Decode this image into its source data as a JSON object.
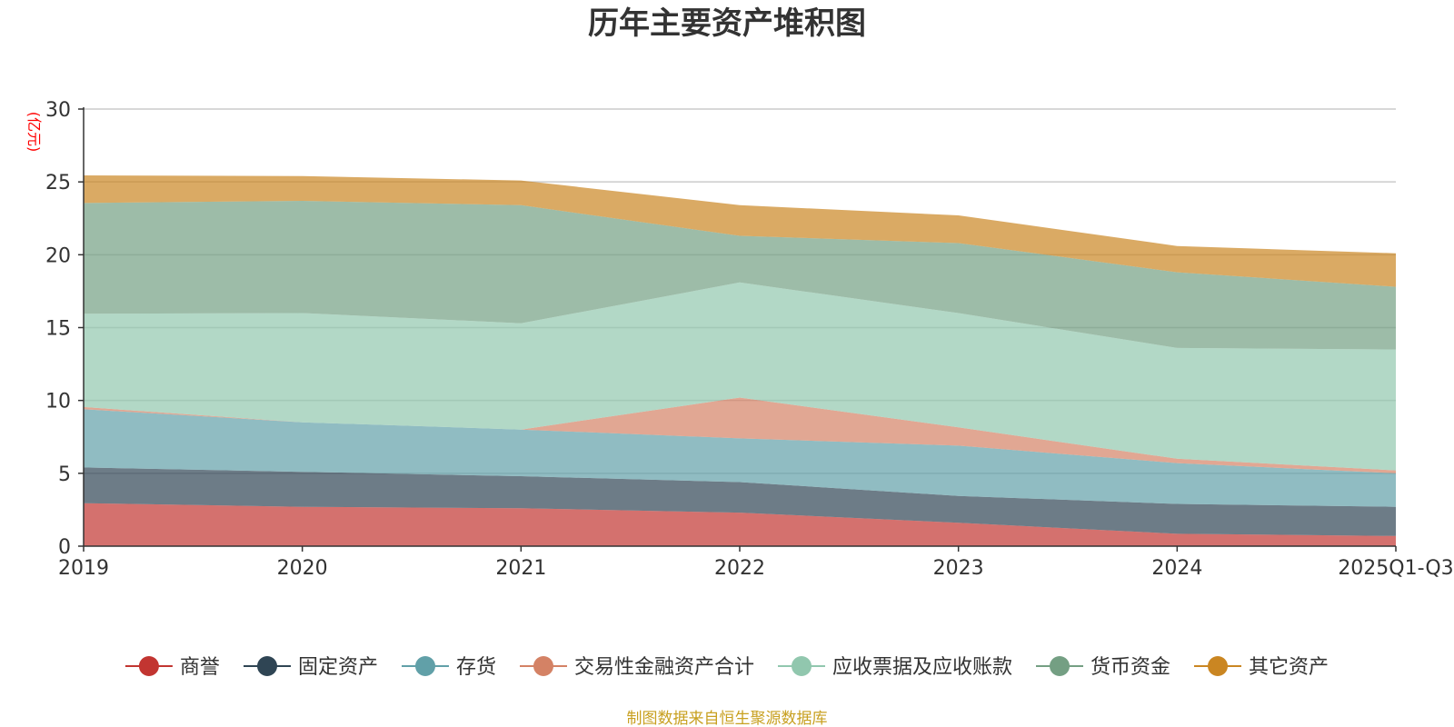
{
  "chart_data": {
    "type": "area",
    "stacked": true,
    "title": "历年主要资产堆积图",
    "unit_label": "(亿元)",
    "source_note": "制图数据来自恒生聚源数据库",
    "categories": [
      "2019",
      "2020",
      "2021",
      "2022",
      "2023",
      "2024",
      "2025Q1-Q3"
    ],
    "ylim": [
      0,
      30
    ],
    "yticks": [
      0,
      5,
      10,
      15,
      20,
      25,
      30
    ],
    "grid": true,
    "legend_position": "bottom",
    "series": [
      {
        "name": "商誉",
        "color": "#c23531",
        "values": [
          2.95,
          2.7,
          2.6,
          2.3,
          1.6,
          0.85,
          0.7
        ]
      },
      {
        "name": "固定资产",
        "color": "#2f4554",
        "values": [
          2.45,
          2.4,
          2.2,
          2.1,
          1.85,
          2.05,
          2.0
        ]
      },
      {
        "name": "存货",
        "color": "#61a0a8",
        "values": [
          4.0,
          3.4,
          3.2,
          3.0,
          3.45,
          2.8,
          2.3
        ]
      },
      {
        "name": "交易性金融资产合计",
        "color": "#d48265",
        "values": [
          0.15,
          0.0,
          0.0,
          2.8,
          1.25,
          0.3,
          0.2
        ]
      },
      {
        "name": "应收票据及应收账款",
        "color": "#91c7ae",
        "values": [
          6.4,
          7.5,
          7.3,
          7.9,
          7.85,
          7.6,
          8.3
        ]
      },
      {
        "name": "货币资金",
        "color": "#749f83",
        "values": [
          7.6,
          7.7,
          8.1,
          3.2,
          4.8,
          5.2,
          4.3
        ]
      },
      {
        "name": "其它资产",
        "color": "#ca8622",
        "values": [
          1.9,
          1.7,
          1.7,
          2.1,
          1.9,
          1.8,
          2.3
        ]
      }
    ]
  }
}
